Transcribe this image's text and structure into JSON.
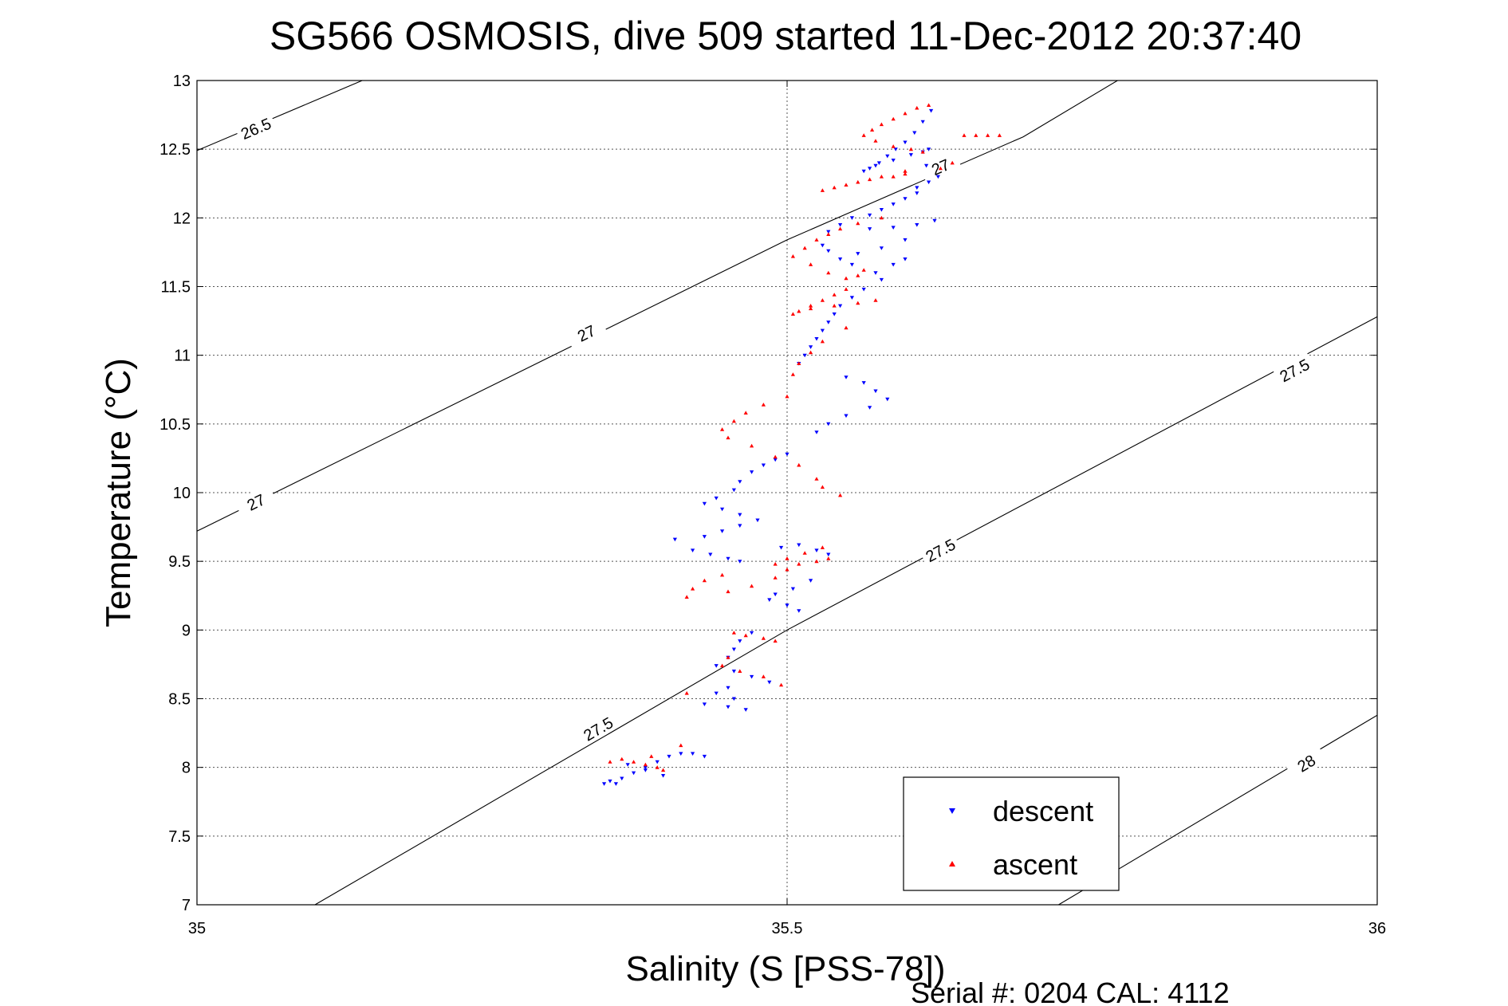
{
  "chart_data": {
    "type": "scatter",
    "title": "SG566 OSMOSIS, dive 509 started 11-Dec-2012 20:37:40",
    "xlabel": "Salinity (S [PSS-78])",
    "ylabel": "Temperature (°C)",
    "xlim": [
      35,
      36
    ],
    "ylim": [
      7,
      13
    ],
    "x_ticks": [
      35,
      35.5,
      36
    ],
    "y_ticks": [
      7,
      7.5,
      8,
      8.5,
      9,
      9.5,
      10,
      10.5,
      11,
      11.5,
      12,
      12.5,
      13
    ],
    "grid": true,
    "legend_position": "bottom-right",
    "footer": "Serial #: 0204  CAL: 4112",
    "contours": [
      {
        "label": "26.5",
        "points": [
          [
            35.0,
            12.49
          ],
          [
            35.14,
            13.0
          ]
        ],
        "label_at": [
          [
            35.05,
            12.65
          ]
        ]
      },
      {
        "label": "27",
        "points": [
          [
            35.0,
            9.72
          ],
          [
            35.5,
            11.84
          ],
          [
            35.7,
            12.59
          ],
          [
            35.78,
            13.0
          ]
        ],
        "label_at": [
          [
            35.05,
            9.93
          ],
          [
            35.33,
            11.16
          ],
          [
            35.63,
            12.37
          ]
        ]
      },
      {
        "label": "27.5",
        "points": [
          [
            35.1,
            7.0
          ],
          [
            35.5,
            9.0
          ],
          [
            36.0,
            11.28
          ]
        ],
        "label_at": [
          [
            35.34,
            8.28
          ],
          [
            35.63,
            9.58
          ],
          [
            35.93,
            10.89
          ]
        ]
      },
      {
        "label": "28",
        "points": [
          [
            35.73,
            7.0
          ],
          [
            36.0,
            8.38
          ]
        ],
        "label_at": [
          [
            35.94,
            8.03
          ]
        ]
      }
    ],
    "series": [
      {
        "name": "descent",
        "color": "#0000ff",
        "marker": "triangle-down",
        "x": [
          35.622,
          35.615,
          35.608,
          35.6,
          35.592,
          35.585,
          35.578,
          35.57,
          35.565,
          35.575,
          35.59,
          35.605,
          35.618,
          35.628,
          35.62,
          35.61,
          35.615,
          35.62,
          35.61,
          35.6,
          35.59,
          35.58,
          35.57,
          35.555,
          35.545,
          35.535,
          35.57,
          35.59,
          35.61,
          35.625,
          35.6,
          35.58,
          35.56,
          35.545,
          35.535,
          35.53,
          35.555,
          35.575,
          35.59,
          35.6,
          35.58,
          35.565,
          35.555,
          35.545,
          35.54,
          35.535,
          35.53,
          35.525,
          35.52,
          35.515,
          35.51,
          35.55,
          35.565,
          35.575,
          35.585,
          35.57,
          35.55,
          35.535,
          35.525,
          35.5,
          35.49,
          35.48,
          35.47,
          35.46,
          35.455,
          35.44,
          35.43,
          35.445,
          35.46,
          35.475,
          35.46,
          35.445,
          35.43,
          35.405,
          35.42,
          35.435,
          35.45,
          35.46,
          35.495,
          35.51,
          35.525,
          35.535,
          35.52,
          35.505,
          35.49,
          35.485,
          35.5,
          35.51,
          35.47,
          35.46,
          35.455,
          35.45,
          35.44,
          35.455,
          35.47,
          35.485,
          35.45,
          35.44,
          35.455,
          35.43,
          35.45,
          35.465,
          35.35,
          35.36,
          35.37,
          35.38,
          35.39,
          35.4,
          35.41,
          35.42,
          35.345,
          35.355,
          35.43,
          35.365,
          35.38,
          35.395
        ],
        "y": [
          12.78,
          12.7,
          12.62,
          12.55,
          12.5,
          12.45,
          12.4,
          12.36,
          12.34,
          12.38,
          12.42,
          12.46,
          12.38,
          12.3,
          12.26,
          12.22,
          12.48,
          12.5,
          12.18,
          12.14,
          12.1,
          12.06,
          12.02,
          12.0,
          11.95,
          11.9,
          11.92,
          11.93,
          11.95,
          11.98,
          11.84,
          11.78,
          11.74,
          11.7,
          11.76,
          11.8,
          11.66,
          11.6,
          11.66,
          11.7,
          11.55,
          11.48,
          11.42,
          11.36,
          11.3,
          11.24,
          11.18,
          11.12,
          11.06,
          11.0,
          10.94,
          10.84,
          10.8,
          10.74,
          10.68,
          10.62,
          10.56,
          10.5,
          10.44,
          10.28,
          10.24,
          10.2,
          10.15,
          10.08,
          10.02,
          9.96,
          9.92,
          9.88,
          9.84,
          9.8,
          9.76,
          9.72,
          9.68,
          9.66,
          9.58,
          9.55,
          9.52,
          9.5,
          9.6,
          9.62,
          9.58,
          9.55,
          9.36,
          9.3,
          9.26,
          9.22,
          9.18,
          9.14,
          8.98,
          8.92,
          8.86,
          8.8,
          8.74,
          8.7,
          8.66,
          8.62,
          8.58,
          8.54,
          8.5,
          8.46,
          8.44,
          8.42,
          7.9,
          7.92,
          7.96,
          8.0,
          8.04,
          8.08,
          8.1,
          8.1,
          7.88,
          7.88,
          8.08,
          8.02,
          7.98,
          7.94
        ]
      },
      {
        "name": "ascent",
        "color": "#ff0000",
        "marker": "triangle-up",
        "x": [
          35.62,
          35.61,
          35.6,
          35.59,
          35.58,
          35.572,
          35.565,
          35.575,
          35.59,
          35.605,
          35.615,
          35.65,
          35.66,
          35.67,
          35.68,
          35.64,
          35.63,
          35.6,
          35.58,
          35.56,
          35.54,
          35.53,
          35.55,
          35.57,
          35.59,
          35.6,
          35.58,
          35.56,
          35.545,
          35.535,
          35.525,
          35.515,
          35.505,
          35.52,
          35.535,
          35.55,
          35.56,
          35.565,
          35.55,
          35.54,
          35.53,
          35.52,
          35.51,
          35.505,
          35.52,
          35.54,
          35.56,
          35.575,
          35.55,
          35.53,
          35.52,
          35.51,
          35.505,
          35.5,
          35.48,
          35.465,
          35.455,
          35.445,
          35.45,
          35.47,
          35.49,
          35.51,
          35.525,
          35.53,
          35.545,
          35.53,
          35.515,
          35.5,
          35.49,
          35.445,
          35.43,
          35.42,
          35.415,
          35.45,
          35.47,
          35.49,
          35.5,
          35.51,
          35.525,
          35.535,
          35.455,
          35.465,
          35.48,
          35.49,
          35.45,
          35.445,
          35.46,
          35.48,
          35.415,
          35.495,
          35.36,
          35.37,
          35.38,
          35.39,
          35.35,
          35.385,
          35.395,
          35.41
        ],
        "y": [
          12.82,
          12.8,
          12.76,
          12.72,
          12.68,
          12.64,
          12.6,
          12.56,
          12.52,
          12.5,
          12.48,
          12.6,
          12.6,
          12.6,
          12.6,
          12.4,
          12.36,
          12.32,
          12.3,
          12.26,
          12.22,
          12.2,
          12.24,
          12.28,
          12.3,
          12.34,
          12.0,
          11.96,
          11.92,
          11.88,
          11.84,
          11.78,
          11.72,
          11.66,
          11.6,
          11.56,
          11.58,
          11.62,
          11.48,
          11.44,
          11.4,
          11.36,
          11.32,
          11.3,
          11.34,
          11.36,
          11.38,
          11.4,
          11.2,
          11.1,
          11.02,
          10.94,
          10.86,
          10.7,
          10.64,
          10.58,
          10.52,
          10.46,
          10.4,
          10.34,
          10.26,
          10.2,
          10.1,
          10.04,
          9.98,
          9.6,
          9.56,
          9.52,
          9.48,
          9.4,
          9.36,
          9.3,
          9.24,
          9.28,
          9.32,
          9.38,
          9.44,
          9.48,
          9.5,
          9.52,
          8.98,
          8.96,
          8.94,
          8.92,
          8.8,
          8.74,
          8.7,
          8.66,
          8.54,
          8.6,
          8.06,
          8.04,
          8.02,
          8.0,
          8.04,
          8.08,
          7.98,
          8.16
        ]
      }
    ]
  }
}
